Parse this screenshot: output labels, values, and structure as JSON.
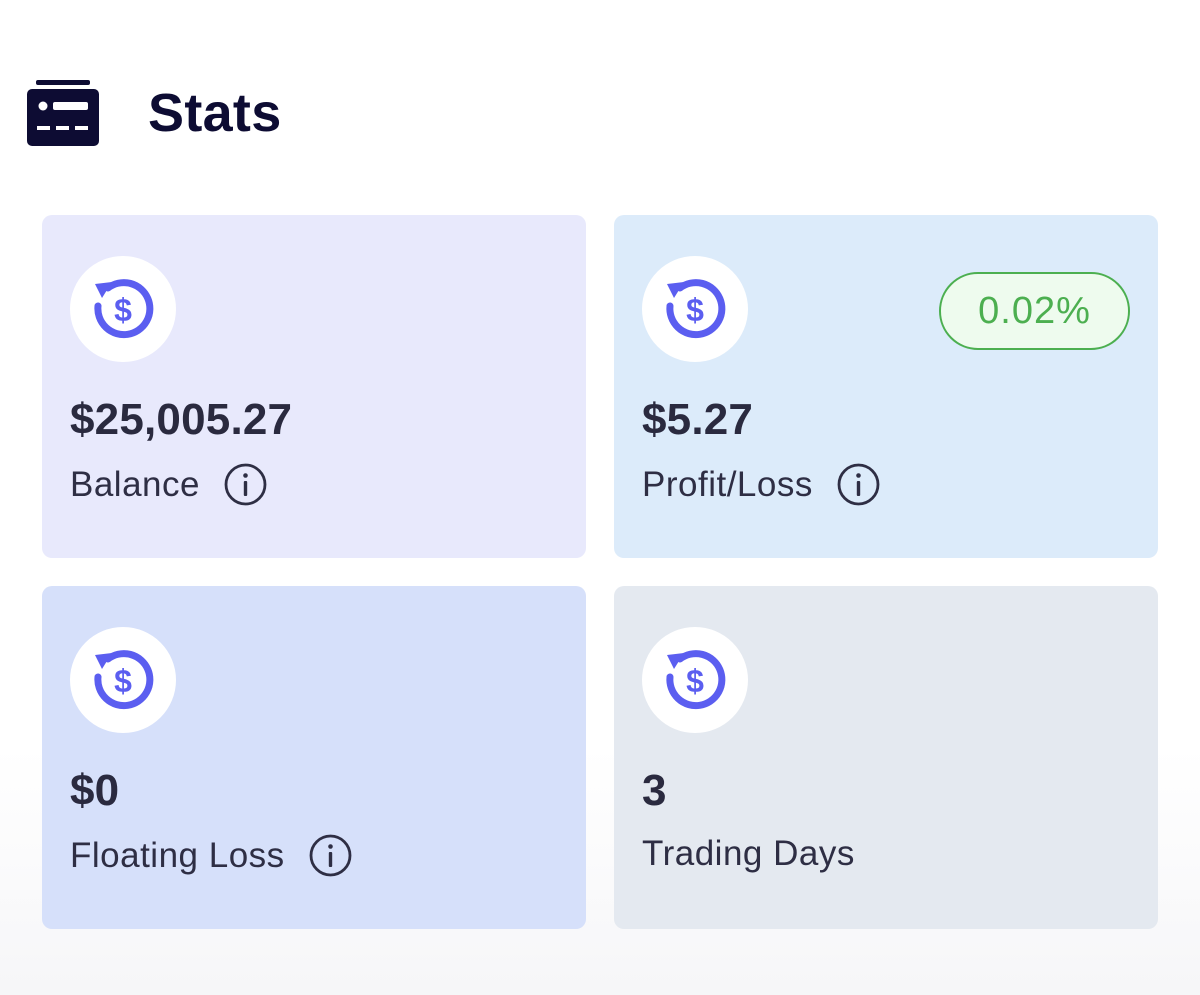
{
  "header": {
    "title": "Stats",
    "icon": "stats-card-icon"
  },
  "colors": {
    "accent": "#5b5ef0",
    "positive": "#4caf50",
    "title": "#0d0c33"
  },
  "cards": [
    {
      "icon": "dollar-refresh-icon",
      "value": "$25,005.27",
      "label": "Balance",
      "info": true
    },
    {
      "icon": "dollar-refresh-icon",
      "value": "$5.27",
      "label": "Profit/Loss",
      "badge": "0.02%",
      "info": true
    },
    {
      "icon": "dollar-refresh-icon",
      "value": "$0",
      "label": "Floating Loss",
      "info": true
    },
    {
      "icon": "dollar-refresh-icon",
      "value": "3",
      "label": "Trading Days",
      "info": false
    }
  ]
}
